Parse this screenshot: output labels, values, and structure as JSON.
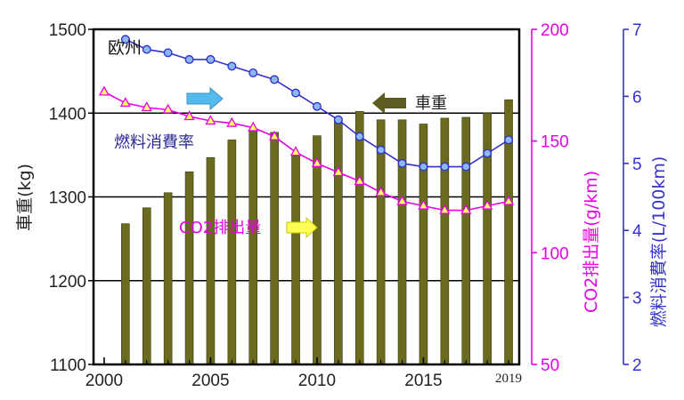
{
  "chart_data": {
    "type": "bar",
    "region_label": "欧州",
    "x": {
      "ticks": [
        "2000",
        "2005",
        "2010",
        "2015"
      ],
      "tick_values": [
        2000,
        2005,
        2010,
        2015
      ],
      "end_label": "2019",
      "range": [
        1999.5,
        2019.5
      ]
    },
    "axes": {
      "left": {
        "label": "車重(kg)",
        "range": [
          1100,
          1500
        ],
        "ticks": [
          "1100",
          "1200",
          "1300",
          "1400",
          "1500"
        ]
      },
      "middle": {
        "label": "CO2排出量(g/km)",
        "range": [
          50,
          200
        ],
        "ticks": [
          "50",
          "100",
          "150",
          "200"
        ]
      },
      "right": {
        "label": "燃料消費率(L/100km)",
        "range": [
          2,
          7
        ],
        "ticks": [
          "2",
          "3",
          "4",
          "5",
          "6",
          "7"
        ]
      }
    },
    "gridlines": [
      1200,
      1300,
      1400
    ],
    "series": [
      {
        "name": "車重",
        "kind": "bar",
        "axis": "left",
        "color": "#6b6b1f",
        "x": [
          2001,
          2002,
          2003,
          2004,
          2005,
          2006,
          2007,
          2008,
          2009,
          2010,
          2011,
          2012,
          2013,
          2014,
          2015,
          2016,
          2017,
          2018,
          2019
        ],
        "values": [
          1268,
          1287,
          1305,
          1330,
          1347,
          1368,
          1380,
          1377,
          1349,
          1373,
          1394,
          1402,
          1392,
          1392,
          1387,
          1394,
          1395,
          1400,
          1416
        ]
      },
      {
        "name": "燃料消費率",
        "kind": "line",
        "axis": "right",
        "color": "#3333cc",
        "marker_fill": "#8ab8f0",
        "x": [
          2001,
          2002,
          2003,
          2004,
          2005,
          2006,
          2007,
          2008,
          2009,
          2010,
          2011,
          2012,
          2013,
          2014,
          2015,
          2016,
          2017,
          2018,
          2019
        ],
        "values": [
          6.85,
          6.7,
          6.65,
          6.55,
          6.55,
          6.45,
          6.35,
          6.25,
          6.05,
          5.85,
          5.65,
          5.4,
          5.2,
          5.0,
          4.95,
          4.95,
          4.95,
          5.15,
          5.35
        ]
      },
      {
        "name": "CO2排出量",
        "kind": "line",
        "axis": "middle",
        "color": "#e600e6",
        "marker_fill": "#ffff66",
        "x": [
          2000,
          2001,
          2002,
          2003,
          2004,
          2005,
          2006,
          2007,
          2008,
          2009,
          2010,
          2011,
          2012,
          2013,
          2014,
          2015,
          2016,
          2017,
          2018,
          2019
        ],
        "values": [
          172,
          167,
          165,
          164,
          161,
          159,
          158,
          156,
          152,
          145,
          140,
          136,
          132,
          127,
          123,
          121,
          119,
          119,
          121,
          123
        ]
      }
    ],
    "legend_text": {
      "weight": "車重",
      "fuel": "燃料消費率",
      "co2": "CO2排出量"
    },
    "arrow_colors": {
      "weight": "#5c5c20",
      "fuel": "#55bbee",
      "co2": "#ffff55"
    }
  }
}
